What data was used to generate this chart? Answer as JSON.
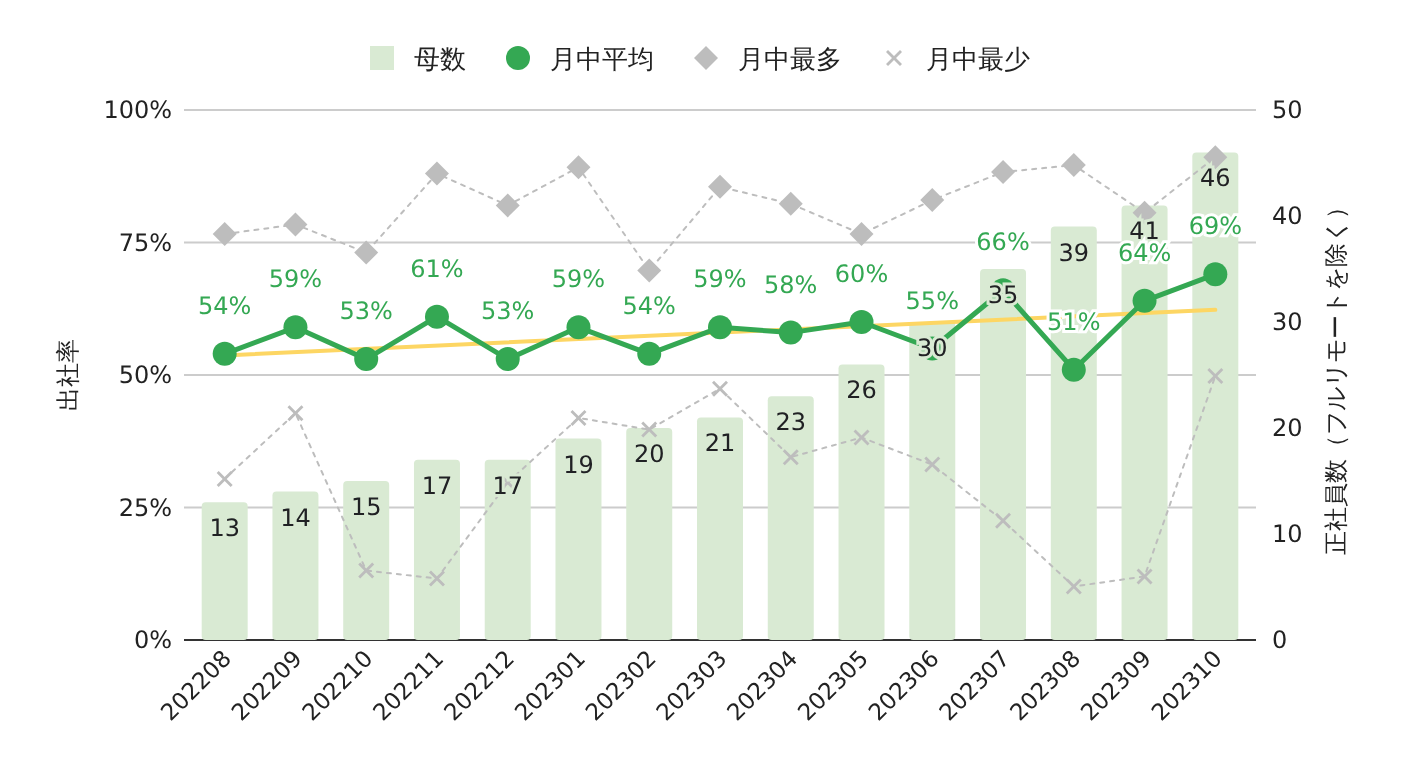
{
  "chart_data": {
    "type": "bar",
    "ylabel": "出社率",
    "y2label": "正社員数（フルリモートを除く）",
    "categories": [
      "202208",
      "202209",
      "202210",
      "202211",
      "202212",
      "202301",
      "202302",
      "202303",
      "202304",
      "202305",
      "202306",
      "202307",
      "202308",
      "202309",
      "202310"
    ],
    "series": [
      {
        "name": "母数",
        "axis": "y2",
        "color": "#d9ead3",
        "values": [
          13,
          14,
          15,
          17,
          17,
          19,
          20,
          21,
          23,
          26,
          30,
          35,
          39,
          41,
          46
        ],
        "value_labels": [
          "13",
          "14",
          "15",
          "17",
          "17",
          "19",
          "20",
          "21",
          "23",
          "26",
          "30",
          "35",
          "39",
          "41",
          "46"
        ]
      },
      {
        "name": "月中平均",
        "type": "line",
        "color": "#34a853",
        "values": [
          54,
          59,
          53,
          61,
          53,
          59,
          54,
          59,
          58,
          60,
          55,
          66,
          51,
          64,
          69
        ],
        "value_labels": [
          "54%",
          "59%",
          "53%",
          "61%",
          "53%",
          "59%",
          "54%",
          "59%",
          "58%",
          "60%",
          "55%",
          "66%",
          "51%",
          "64%",
          "69%"
        ],
        "marker": "circle",
        "line_style": "solid"
      },
      {
        "name": "月中最多",
        "type": "line",
        "color": "#bdbdbd",
        "values": [
          76.6,
          78.4,
          73.1,
          88.0,
          82.0,
          89.2,
          69.7,
          85.5,
          82.3,
          76.6,
          83.0,
          88.3,
          89.6,
          80.6,
          91.1
        ],
        "marker": "diamond",
        "line_style": "dotted"
      },
      {
        "name": "月中最少",
        "type": "line",
        "color": "#bdbdbd",
        "values": [
          30.4,
          42.8,
          13.1,
          11.6,
          29.7,
          41.9,
          39.7,
          47.4,
          34.5,
          38.2,
          33.1,
          22.5,
          10.1,
          12.0,
          49.8
        ],
        "marker": "cross",
        "line_style": "dotted"
      },
      {
        "type": "line",
        "color": "#fdd663",
        "x": [
          "202208",
          "202310"
        ],
        "values": [
          53.7,
          62.3
        ],
        "marker": "none",
        "line_style": "solid"
      }
    ],
    "ylim": [
      0,
      100
    ],
    "yticks": [
      {
        "value": 0,
        "label": "0%"
      },
      {
        "value": 25,
        "label": "25%"
      },
      {
        "value": 50,
        "label": "50%"
      },
      {
        "value": 75,
        "label": "75%"
      },
      {
        "value": 100,
        "label": "100%"
      }
    ],
    "y2lim": [
      0,
      50
    ],
    "y2ticks": [
      0,
      10,
      20,
      30,
      40,
      50
    ],
    "grid": "y",
    "legend": "top"
  }
}
